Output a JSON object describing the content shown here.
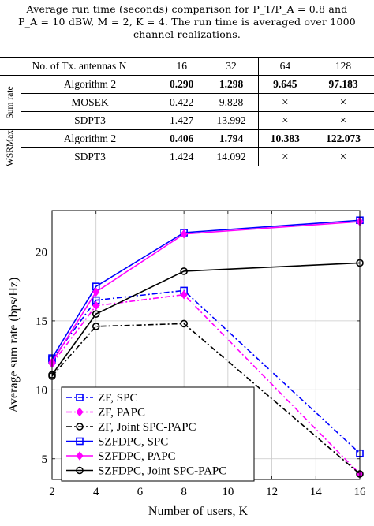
{
  "caption": {
    "line1": "Average run time (seconds) comparison for P_T/P_A = 0.8 and",
    "line2": "P_A = 10 dBW, M = 2, K = 4. The run time is averaged over 1000",
    "line3": "channel realizations."
  },
  "table": {
    "header_label": "No. of Tx. antennas N",
    "columns": [
      "16",
      "32",
      "64",
      "128"
    ],
    "groups": [
      {
        "label": "Sum rate",
        "rows": [
          {
            "name": "Algorithm 2",
            "values": [
              "0.290",
              "1.298",
              "9.645",
              "97.183"
            ],
            "bold": true
          },
          {
            "name": "MOSEK",
            "values": [
              "0.422",
              "9.828",
              "×",
              "×"
            ],
            "bold": false
          },
          {
            "name": "SDPT3",
            "values": [
              "1.427",
              "13.992",
              "×",
              "×"
            ],
            "bold": false
          }
        ]
      },
      {
        "label": "WSRMax",
        "rows": [
          {
            "name": "Algorithm 2",
            "values": [
              "0.406",
              "1.794",
              "10.383",
              "122.073"
            ],
            "bold": true
          },
          {
            "name": "SDPT3",
            "values": [
              "1.424",
              "14.092",
              "×",
              "×"
            ],
            "bold": false
          }
        ]
      }
    ]
  },
  "chart_data": {
    "type": "line",
    "xlabel": "Number of users, K",
    "ylabel": "Average sum rate (bps/Hz)",
    "xlim": [
      2,
      16
    ],
    "ylim": [
      3.5,
      23
    ],
    "xticks": [
      2,
      4,
      6,
      8,
      10,
      12,
      14,
      16
    ],
    "yticks": [
      5,
      10,
      15,
      20
    ],
    "grid": true,
    "legend_position": "bottom-left",
    "x": [
      2,
      4,
      8,
      16
    ],
    "series": [
      {
        "name": "ZF, SPC",
        "values": [
          12.2,
          16.5,
          17.2,
          5.4
        ],
        "color": "#0000ff",
        "dash": "dashdot",
        "marker": "square"
      },
      {
        "name": "ZF, PAPC",
        "values": [
          11.9,
          16.1,
          16.9,
          3.9
        ],
        "color": "#ff00ff",
        "dash": "dashdot",
        "marker": "diamond"
      },
      {
        "name": "ZF, Joint SPC-PAPC",
        "values": [
          11.0,
          14.6,
          14.8,
          3.9
        ],
        "color": "#000000",
        "dash": "dashdot",
        "marker": "circle"
      },
      {
        "name": "SZFDPC, SPC",
        "values": [
          12.3,
          17.5,
          21.4,
          22.3
        ],
        "color": "#0000ff",
        "dash": "solid",
        "marker": "square"
      },
      {
        "name": "SZFDPC, PAPC",
        "values": [
          12.0,
          17.1,
          21.3,
          22.2
        ],
        "color": "#ff00ff",
        "dash": "solid",
        "marker": "diamond"
      },
      {
        "name": "SZFDPC, Joint SPC-PAPC",
        "values": [
          11.1,
          15.5,
          18.6,
          19.2
        ],
        "color": "#000000",
        "dash": "solid",
        "marker": "circle"
      }
    ]
  }
}
